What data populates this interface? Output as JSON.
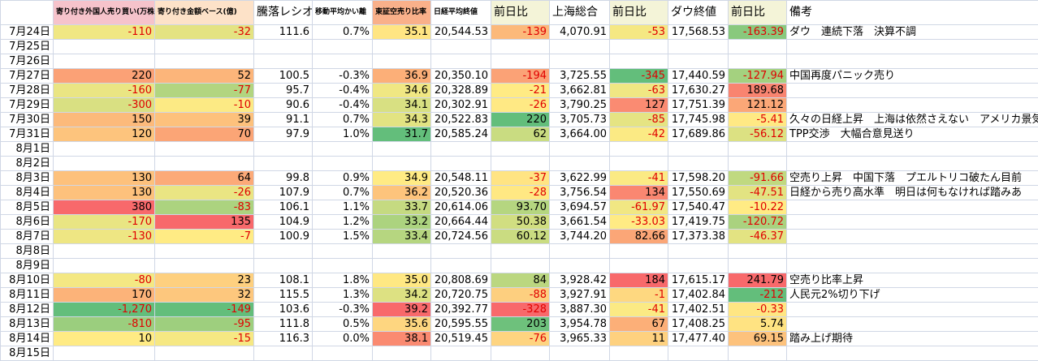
{
  "header": [
    null,
    "寄り付き外国人売り買い(万株)",
    "寄り付き金額ベース(億)",
    "騰落レシオ",
    "移動平均かい離",
    "東証空売り比率",
    "日経平均終値",
    "前日比",
    "上海総合",
    "前日比",
    "ダウ終値",
    "前日比",
    "備考"
  ],
  "rows": [
    [
      "7月24日",
      "-110",
      "-32",
      "111.6",
      "0.7%",
      "35.1",
      "20,544.53",
      "-139",
      "4,070.91",
      "-53",
      "17,568.53",
      "-163.39",
      "ダウ　連続下落　決算不調"
    ],
    [
      "7月25日",
      null,
      null,
      null,
      null,
      null,
      null,
      null,
      null,
      null,
      null,
      null,
      null
    ],
    [
      "7月26日",
      null,
      null,
      null,
      null,
      null,
      null,
      null,
      null,
      null,
      null,
      null,
      null
    ],
    [
      "7月27日",
      "220",
      "52",
      "100.5",
      "-0.3%",
      "36.9",
      "20,350.10",
      "-194",
      "3,725.55",
      "-345",
      "17,440.59",
      "-127.94",
      "中国再度パニック売り"
    ],
    [
      "7月28日",
      "-160",
      "-77",
      "95.7",
      "-0.4%",
      "34.6",
      "20,328.89",
      "-21",
      "3,662.81",
      "-63",
      "17,630.27",
      "189.68",
      null
    ],
    [
      "7月29日",
      "-300",
      "-10",
      "90.6",
      "-0.4%",
      "34.1",
      "20,302.91",
      "-26",
      "3,790.25",
      "127",
      "17,751.39",
      "121.12",
      null
    ],
    [
      "7月30日",
      "150",
      "39",
      "91.1",
      "0.7%",
      "34.3",
      "20,522.83",
      "220",
      "3,705.73",
      "-85",
      "17,745.98",
      "-5.41",
      "久々の日経上昇　上海は依然さえない　アメリカ景気"
    ],
    [
      "7月31日",
      "120",
      "70",
      "97.9",
      "1.0%",
      "31.7",
      "20,585.24",
      "62",
      "3,664.00",
      "-42",
      "17,689.86",
      "-56.12",
      "TPP交渉　大幅合意見送り"
    ],
    [
      "8月1日",
      null,
      null,
      null,
      null,
      null,
      null,
      null,
      null,
      null,
      null,
      null,
      null
    ],
    [
      "8月2日",
      null,
      null,
      null,
      null,
      null,
      null,
      null,
      null,
      null,
      null,
      null,
      null
    ],
    [
      "8月3日",
      "130",
      "64",
      "99.8",
      "0.9%",
      "34.9",
      "20,548.11",
      "-37",
      "3,622.99",
      "-41",
      "17,598.20",
      "-91.66",
      "空売り上昇　中国下落　プエルトリコ破たん目前"
    ],
    [
      "8月4日",
      "130",
      "-26",
      "107.9",
      "0.7%",
      "36.2",
      "20,520.36",
      "-28",
      "3,756.54",
      "134",
      "17,550.69",
      "-47.51",
      "日経から売り高水準　明日は何もなければ踏みあ"
    ],
    [
      "8月5日",
      "380",
      "-83",
      "106.1",
      "1.1%",
      "33.7",
      "20,614.06",
      "93.70",
      "3,694.57",
      "-61.97",
      "17,540.47",
      "-10.22",
      null
    ],
    [
      "8月6日",
      "-170",
      "135",
      "104.9",
      "1.2%",
      "33.2",
      "20,664.44",
      "50.38",
      "3,661.54",
      "-33.03",
      "17,419.75",
      "-120.72",
      null
    ],
    [
      "8月7日",
      "-130",
      "-7",
      "100.9",
      "1.5%",
      "33.4",
      "20,724.56",
      "60.12",
      "3,744.20",
      "82.66",
      "17,373.38",
      "-46.37",
      null
    ],
    [
      "8月8日",
      null,
      null,
      null,
      null,
      null,
      null,
      null,
      null,
      null,
      null,
      null,
      null
    ],
    [
      "8月9日",
      null,
      null,
      null,
      null,
      null,
      null,
      null,
      null,
      null,
      null,
      null,
      null
    ],
    [
      "8月10日",
      "-80",
      "23",
      "108.1",
      "1.8%",
      "35.0",
      "20,808.69",
      "84",
      "3,928.42",
      "184",
      "17,615.17",
      "241.79",
      "空売り比率上昇"
    ],
    [
      "8月11日",
      "170",
      "32",
      "115.5",
      "1.3%",
      "34.2",
      "20,720.75",
      "-88",
      "3,927.91",
      "-1",
      "17,402.84",
      "-212",
      "人民元2%切り下げ"
    ],
    [
      "8月12日",
      "-1,270",
      "-149",
      "103.6",
      "-0.3%",
      "39.2",
      "20,392.77",
      "-328",
      "3,887.30",
      "-41",
      "17,402.51",
      "-0.33",
      null
    ],
    [
      "8月13日",
      "-810",
      "-95",
      "111.8",
      "0.5%",
      "35.6",
      "20,595.55",
      "203",
      "3,954.78",
      "67",
      "17,408.25",
      "5.74",
      null
    ],
    [
      "8月14日",
      "10",
      "-15",
      "116.3",
      "0.0%",
      "38.1",
      "20,519.45",
      "-76",
      "3,965.33",
      "11",
      "17,477.40",
      "69.15",
      "踏み上げ期待"
    ],
    [
      "8月15日",
      null,
      null,
      null,
      null,
      null,
      null,
      null,
      null,
      null,
      null,
      null,
      null
    ]
  ]
}
